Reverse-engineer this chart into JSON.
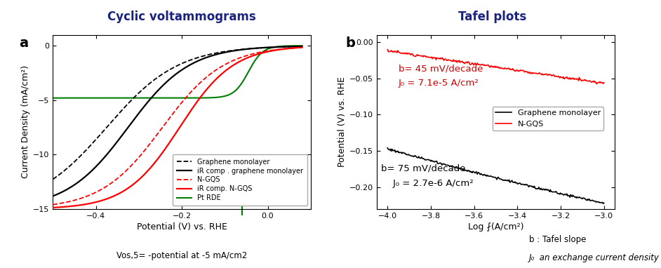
{
  "title_a": "Cyclic voltammograms",
  "title_b": "Tafel plots",
  "title_color": "#1a237e",
  "label_a": "a",
  "label_b": "b",
  "cv_xlim": [
    -0.5,
    0.1
  ],
  "cv_ylim": [
    -15,
    1
  ],
  "cv_xlabel": "Potential (V) vs. RHE",
  "cv_ylabel": "Current Density (mA/cm²)",
  "tafel_xlim": [
    -4.05,
    -2.95
  ],
  "tafel_ylim": [
    -0.23,
    0.01
  ],
  "tafel_xlabel": "Log ⨏(A/cm²)",
  "tafel_ylabel": "Potential (V) vs. RHE",
  "annotation_b_red_line1": "b= 45 mV/decade",
  "annotation_b_red_line2": "J₀ = 7.1e-5 A/cm²",
  "annotation_b_black_line1": "b= 75 mV/decade",
  "annotation_b_black_line2": "    J₀ = 2.7e-6 A/cm²",
  "annotation_b_red_color": "#cc0000",
  "annotation_b_black_color": "black",
  "footnote_a": "Vos,5= -potential at -5 mA/cm2",
  "footnote_b1": "b : Tafel slope",
  "footnote_b2": "J₀  an exchange current density",
  "bg_color": "white"
}
